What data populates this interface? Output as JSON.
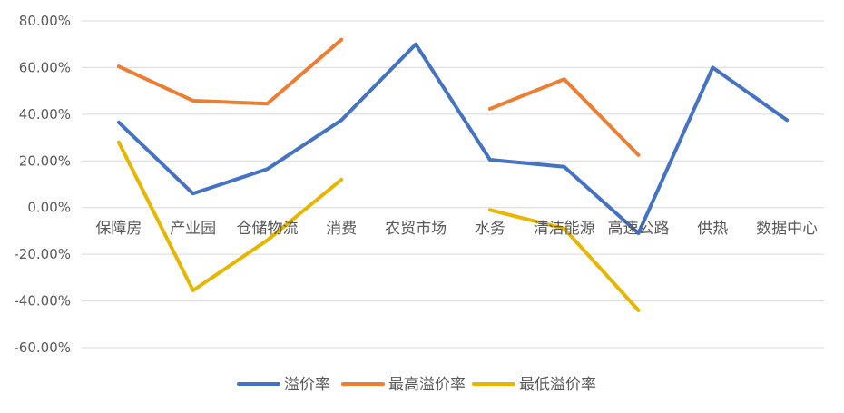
{
  "chart_data": {
    "type": "line",
    "categories": [
      "保障房",
      "产业园",
      "仓储物流",
      "消费",
      "农贸市场",
      "水务",
      "清洁能源",
      "高速公路",
      "供热",
      "数据中心"
    ],
    "series": [
      {
        "name": "溢价率",
        "color": "#4472c4",
        "values": [
          36.5,
          6.0,
          16.5,
          37.5,
          70.0,
          20.5,
          17.5,
          -11.0,
          60.0,
          37.5
        ]
      },
      {
        "name": "最高溢价率",
        "color": "#ed7d31",
        "values": [
          60.5,
          45.8,
          44.5,
          72.0,
          null,
          42.3,
          55.0,
          22.5,
          null,
          null
        ]
      },
      {
        "name": "最低溢价率",
        "color": "#e8b500",
        "values": [
          28.0,
          -35.5,
          -14.0,
          12.0,
          null,
          -1.0,
          -9.0,
          -44.0,
          null,
          null
        ]
      }
    ],
    "y_ticks": [
      "80.00%",
      "60.00%",
      "40.00%",
      "20.00%",
      "0.00%",
      "-20.00%",
      "-40.00%",
      "-60.00%"
    ],
    "ylim": [
      -60,
      80
    ],
    "grid": true,
    "legend_position": "bottom",
    "title": "",
    "xlabel": "",
    "ylabel": ""
  }
}
